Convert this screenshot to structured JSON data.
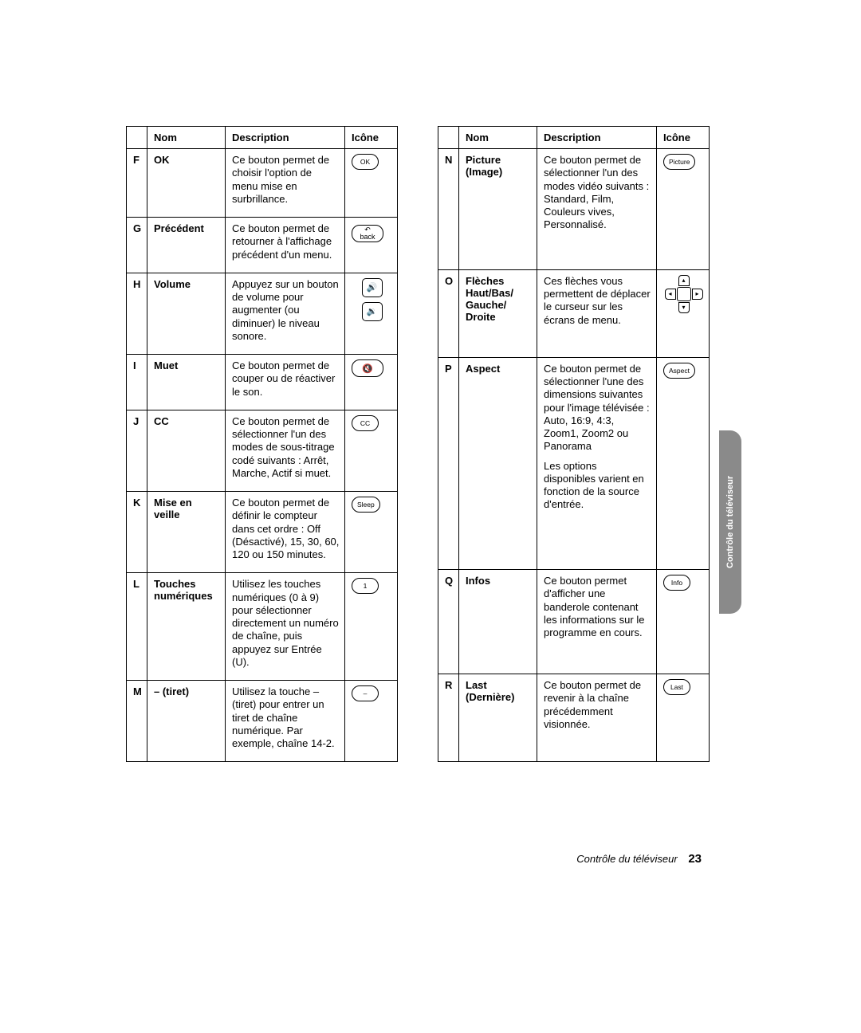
{
  "headers": {
    "nom": "Nom",
    "desc": "Description",
    "icon": "Icône"
  },
  "left": [
    {
      "letter": "F",
      "nom": "OK",
      "desc": "Ce bouton permet de choisir l'option de menu mise en surbrillance.",
      "iconType": "text",
      "iconLabel": "OK"
    },
    {
      "letter": "G",
      "nom": "Précédent",
      "desc": "Ce bouton permet de retourner à l'affichage précédent d'un menu.",
      "iconType": "back",
      "iconLabel": "back"
    },
    {
      "letter": "H",
      "nom": "Volume",
      "desc": "Appuyez sur un bouton de volume pour augmenter (ou diminuer) le niveau sonore.",
      "iconType": "volume"
    },
    {
      "letter": "I",
      "nom": "Muet",
      "desc": "Ce bouton permet de couper ou de réactiver le son.",
      "iconType": "mute"
    },
    {
      "letter": "J",
      "nom": "CC",
      "desc": "Ce bouton permet de sélectionner l'un des modes de sous-titrage codé suivants : Arrêt, Marche, Actif si muet.",
      "iconType": "text",
      "iconLabel": "CC"
    },
    {
      "letter": "K",
      "nom": "Mise en veille",
      "desc": "Ce bouton permet de définir le compteur dans cet ordre : Off (Désactivé), 15, 30, 60, 120 ou 150 minutes.",
      "iconType": "text",
      "iconLabel": "Sleep"
    },
    {
      "letter": "L",
      "nom": "Touches numériques",
      "desc": "Utilisez les touches numériques (0 à 9) pour sélectionner directement un numéro de chaîne, puis appuyez sur Entrée (U).",
      "iconType": "text",
      "iconLabel": "1"
    },
    {
      "letter": "M",
      "nom": "– (tiret)",
      "desc": "Utilisez la touche – (tiret) pour entrer un tiret de chaîne numérique. Par exemple, chaîne 14-2.",
      "iconType": "text",
      "iconLabel": "–"
    }
  ],
  "right": [
    {
      "letter": "N",
      "nom": "Picture (Image)",
      "desc": "Ce bouton permet de sélectionner l'un des modes vidéo suivants : Standard, Film, Couleurs vives, Personnalisé.",
      "iconType": "text",
      "iconLabel": "Picture"
    },
    {
      "letter": "O",
      "nom": "Flèches Haut/Bas/ Gauche/ Droite",
      "desc": "Ces flèches vous permettent de déplacer le curseur sur les écrans de menu.",
      "iconType": "dpad"
    },
    {
      "letter": "P",
      "nom": "Aspect",
      "desc": "Ce bouton permet de sélectionner l'une des dimensions suivantes pour l'image télévisée : Auto, 16:9, 4:3, Zoom1, Zoom2 ou Panorama\n\nLes options disponibles varient en fonction de la source d'entrée.",
      "iconType": "text",
      "iconLabel": "Aspect"
    },
    {
      "letter": "Q",
      "nom": "Infos",
      "desc": "Ce bouton permet d'afficher une banderole contenant les informations sur le programme en cours.",
      "iconType": "text",
      "iconLabel": "Info"
    },
    {
      "letter": "R",
      "nom": "Last (Dernière)",
      "desc": "Ce bouton permet de revenir à la chaîne précédemment visionnée.",
      "iconType": "text",
      "iconLabel": "Last"
    }
  ],
  "sideTab": "Contrôle du téléviseur",
  "footer": {
    "text": "Contrôle du téléviseur",
    "page": "23"
  }
}
